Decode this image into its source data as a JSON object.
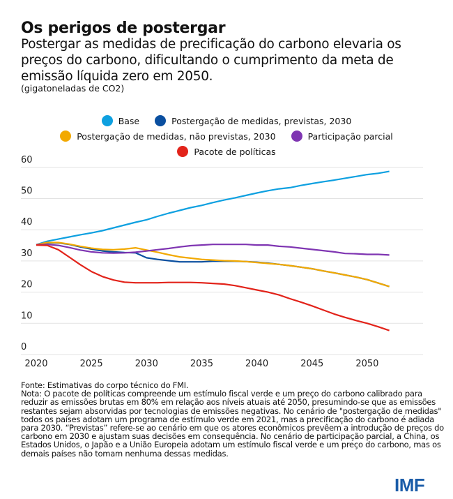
{
  "title": "Os perigos de postergar",
  "subtitle": "Postergar as medidas de precificação do carbono elevaria os preços do carbono, dificultando o cumprimento da meta de emissão líquida zero em 2050.",
  "unit": "(gigatoneladas de CO2)",
  "source": "Fonte: Estimativas do corpo técnico do FMI.",
  "note": "Nota: O pacote de políticas compreende um estímulo fiscal verde e um preço do carbono calibrado para reduzir as emissões brutas em 80% em relação aos níveis atuais até 2050, presumindo-se que as emissões restantes sejam absorvidas por tecnologias de emissões negativas. No cenário de \"postergação de medidas\" todos os países adotam um programa de estímulo verde em 2021, mas a precificação do carbono é adiada para 2030. “Previstas” refere-se ao cenário em que os atores econômicos prevêem a introdução de preços do carbono em 2030 e ajustam suas decisões em consequência. No cenário de participação parcial, a China, os Estados Unidos, o Japão e a União Europeia adotam um estímulo fiscal verde e um preço do carbono, mas os demais países não tomam nenhuma dessas medidas.",
  "logo": "IMF",
  "chart_data": {
    "type": "line",
    "title": "",
    "xlabel": "",
    "ylabel": "",
    "xlim": [
      2020,
      2055
    ],
    "ylim": [
      0,
      60
    ],
    "xticks": [
      2020,
      2025,
      2030,
      2035,
      2040,
      2045,
      2050
    ],
    "yticks": [
      0,
      10,
      20,
      30,
      40,
      50,
      60
    ],
    "grid": "horizontal",
    "legend": "top",
    "x": [
      2020,
      2021,
      2022,
      2023,
      2024,
      2025,
      2026,
      2027,
      2028,
      2029,
      2030,
      2031,
      2032,
      2033,
      2034,
      2035,
      2036,
      2037,
      2038,
      2039,
      2040,
      2041,
      2042,
      2043,
      2044,
      2045,
      2046,
      2047,
      2048,
      2049,
      2050,
      2051,
      2052
    ],
    "series": [
      {
        "name": "Base",
        "color": "#0ea0e0",
        "values": [
          35.2,
          36.3,
          37,
          37.7,
          38.4,
          39,
          39.7,
          40.6,
          41.5,
          42.4,
          43.2,
          44.3,
          45.3,
          46.2,
          47.1,
          47.8,
          48.7,
          49.5,
          50.2,
          51,
          51.8,
          52.5,
          53.1,
          53.5,
          54.2,
          54.8,
          55.4,
          55.9,
          56.5,
          57.1,
          57.7,
          58.1,
          58.7
        ]
      },
      {
        "name": "Postergação de medidas, previstas, 2030",
        "color": "#0a4fa0",
        "values": [
          35.2,
          35.8,
          35.8,
          35.3,
          34.5,
          33.8,
          33.2,
          32.9,
          32.7,
          32.6,
          31,
          30.5,
          30.1,
          29.7,
          29.7,
          29.7,
          29.9,
          29.9,
          29.9,
          29.8,
          29.6,
          29.3,
          28.9,
          28.5,
          28,
          27.5,
          26.8,
          26.2,
          25.5,
          24.8,
          24,
          22.9,
          21.8
        ]
      },
      {
        "name": "Postergação de medidas, não previstas, 2030",
        "color": "#f2a900",
        "values": [
          35.2,
          35.9,
          35.9,
          35.4,
          34.7,
          34.1,
          33.7,
          33.6,
          33.8,
          34.2,
          33.5,
          32.8,
          32,
          31.3,
          30.9,
          30.5,
          30.3,
          30.1,
          30,
          29.8,
          29.5,
          29.2,
          28.9,
          28.5,
          28,
          27.5,
          26.8,
          26.2,
          25.5,
          24.8,
          24,
          22.9,
          21.8
        ]
      },
      {
        "name": "Participação parcial",
        "color": "#7f35b2",
        "values": [
          35.2,
          35.3,
          35,
          34.3,
          33.5,
          32.9,
          32.6,
          32.5,
          32.6,
          32.8,
          33.2,
          33.6,
          34,
          34.5,
          34.9,
          35.1,
          35.3,
          35.3,
          35.3,
          35.3,
          35.1,
          35.1,
          34.7,
          34.5,
          34.1,
          33.7,
          33.3,
          32.9,
          32.4,
          32.3,
          32.1,
          32.1,
          31.9
        ]
      },
      {
        "name": "Pacote de políticas",
        "color": "#e2231a",
        "values": [
          35.1,
          35,
          33.6,
          31.2,
          28.8,
          26.6,
          25,
          23.9,
          23.2,
          23,
          23,
          23,
          23.1,
          23.1,
          23.1,
          23,
          22.8,
          22.6,
          22.1,
          21.4,
          20.7,
          20,
          19.1,
          17.9,
          16.8,
          15.6,
          14.3,
          13,
          11.9,
          10.9,
          10,
          8.9,
          7.7
        ]
      }
    ]
  }
}
